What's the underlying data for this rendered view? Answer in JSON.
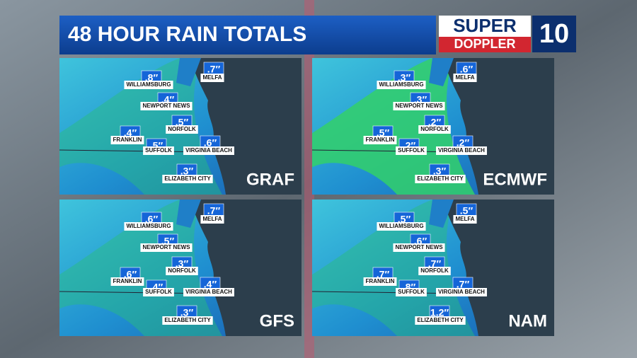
{
  "header": {
    "title": "48 HOUR RAIN TOTALS"
  },
  "logo": {
    "line1": "SUPER",
    "line2": "DOPPLER",
    "number": "10"
  },
  "panels": [
    {
      "model": "GRAF",
      "locations": [
        {
          "name": "WILLIAMSBURG",
          "total": ".8″"
        },
        {
          "name": "MELFA",
          "total": ".7″"
        },
        {
          "name": "NEWPORT NEWS",
          "total": ".4″"
        },
        {
          "name": "NORFOLK",
          "total": ".5″"
        },
        {
          "name": "FRANKLIN",
          "total": ".4″"
        },
        {
          "name": "SUFFOLK",
          "total": ".5″"
        },
        {
          "name": "VIRGINIA BEACH",
          "total": ".6″"
        },
        {
          "name": "ELIZABETH CITY",
          "total": ".3″"
        }
      ]
    },
    {
      "model": "ECMWF",
      "locations": [
        {
          "name": "WILLIAMSBURG",
          "total": ".3″"
        },
        {
          "name": "MELFA",
          "total": ".6″"
        },
        {
          "name": "NEWPORT NEWS",
          "total": ".3″"
        },
        {
          "name": "NORFOLK",
          "total": ".2″"
        },
        {
          "name": "FRANKLIN",
          "total": ".5″"
        },
        {
          "name": "SUFFOLK",
          "total": ".2″"
        },
        {
          "name": "VIRGINIA BEACH",
          "total": ".2″"
        },
        {
          "name": "ELIZABETH CITY",
          "total": ".3″"
        }
      ]
    },
    {
      "model": "GFS",
      "locations": [
        {
          "name": "WILLIAMSBURG",
          "total": ".6″"
        },
        {
          "name": "MELFA",
          "total": ".7″"
        },
        {
          "name": "NEWPORT NEWS",
          "total": ".5″"
        },
        {
          "name": "NORFOLK",
          "total": ".3″"
        },
        {
          "name": "FRANKLIN",
          "total": ".6″"
        },
        {
          "name": "SUFFOLK",
          "total": ".4″"
        },
        {
          "name": "VIRGINIA BEACH",
          "total": ".4″"
        },
        {
          "name": "ELIZABETH CITY",
          "total": ".3″"
        }
      ]
    },
    {
      "model": "NAM",
      "locations": [
        {
          "name": "WILLIAMSBURG",
          "total": ".5″"
        },
        {
          "name": "MELFA",
          "total": ".5″"
        },
        {
          "name": "NEWPORT NEWS",
          "total": ".6″"
        },
        {
          "name": "NORFOLK",
          "total": ".7″"
        },
        {
          "name": "FRANKLIN",
          "total": ".7″"
        },
        {
          "name": "SUFFOLK",
          "total": ".8″"
        },
        {
          "name": "VIRGINIA BEACH",
          "total": ".7″"
        },
        {
          "name": "ELIZABETH CITY",
          "total": "1.2″"
        }
      ]
    }
  ]
}
